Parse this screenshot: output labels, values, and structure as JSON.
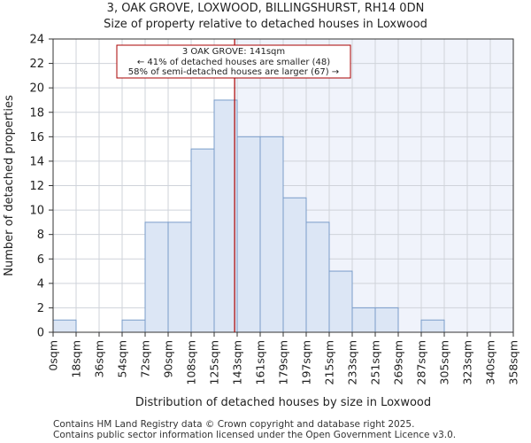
{
  "chart_data": {
    "type": "bar",
    "title": "3, OAK GROVE, LOXWOOD, BILLINGSHURST, RH14 0DN",
    "subtitle": "Size of property relative to detached houses in Loxwood",
    "xlabel": "Distribution of detached houses by size in Loxwood",
    "ylabel": "Number of detached properties",
    "bin_edges": [
      0,
      18,
      36,
      54,
      72,
      90,
      108,
      125,
      143,
      161,
      179,
      197,
      215,
      233,
      251,
      269,
      287,
      305,
      323,
      340,
      358
    ],
    "tick_labels": [
      "0sqm",
      "18sqm",
      "36sqm",
      "54sqm",
      "72sqm",
      "90sqm",
      "108sqm",
      "125sqm",
      "143sqm",
      "161sqm",
      "179sqm",
      "197sqm",
      "215sqm",
      "233sqm",
      "251sqm",
      "269sqm",
      "287sqm",
      "305sqm",
      "323sqm",
      "340sqm",
      "358sqm"
    ],
    "values": [
      1,
      0,
      0,
      1,
      9,
      9,
      15,
      19,
      16,
      16,
      11,
      9,
      5,
      2,
      2,
      0,
      1,
      0,
      0,
      0
    ],
    "ylim": [
      0,
      24
    ],
    "yticks": [
      0,
      2,
      4,
      6,
      8,
      10,
      12,
      14,
      16,
      18,
      20,
      22,
      24
    ],
    "marker_value": 141,
    "annotation": {
      "line1": "3 OAK GROVE: 141sqm",
      "line2": "← 41% of detached houses are smaller (48)",
      "line3": "58% of semi-detached houses are larger (67) →"
    },
    "colors": {
      "bar_fill": "#dce6f5",
      "bar_stroke": "#7a9cc9",
      "marker": "#aa0000",
      "shade": "#f0f3fb",
      "grid": "#cfd3da"
    }
  },
  "footer": {
    "line1": "Contains HM Land Registry data © Crown copyright and database right 2025.",
    "line2": "Contains public sector information licensed under the Open Government Licence v3.0."
  }
}
